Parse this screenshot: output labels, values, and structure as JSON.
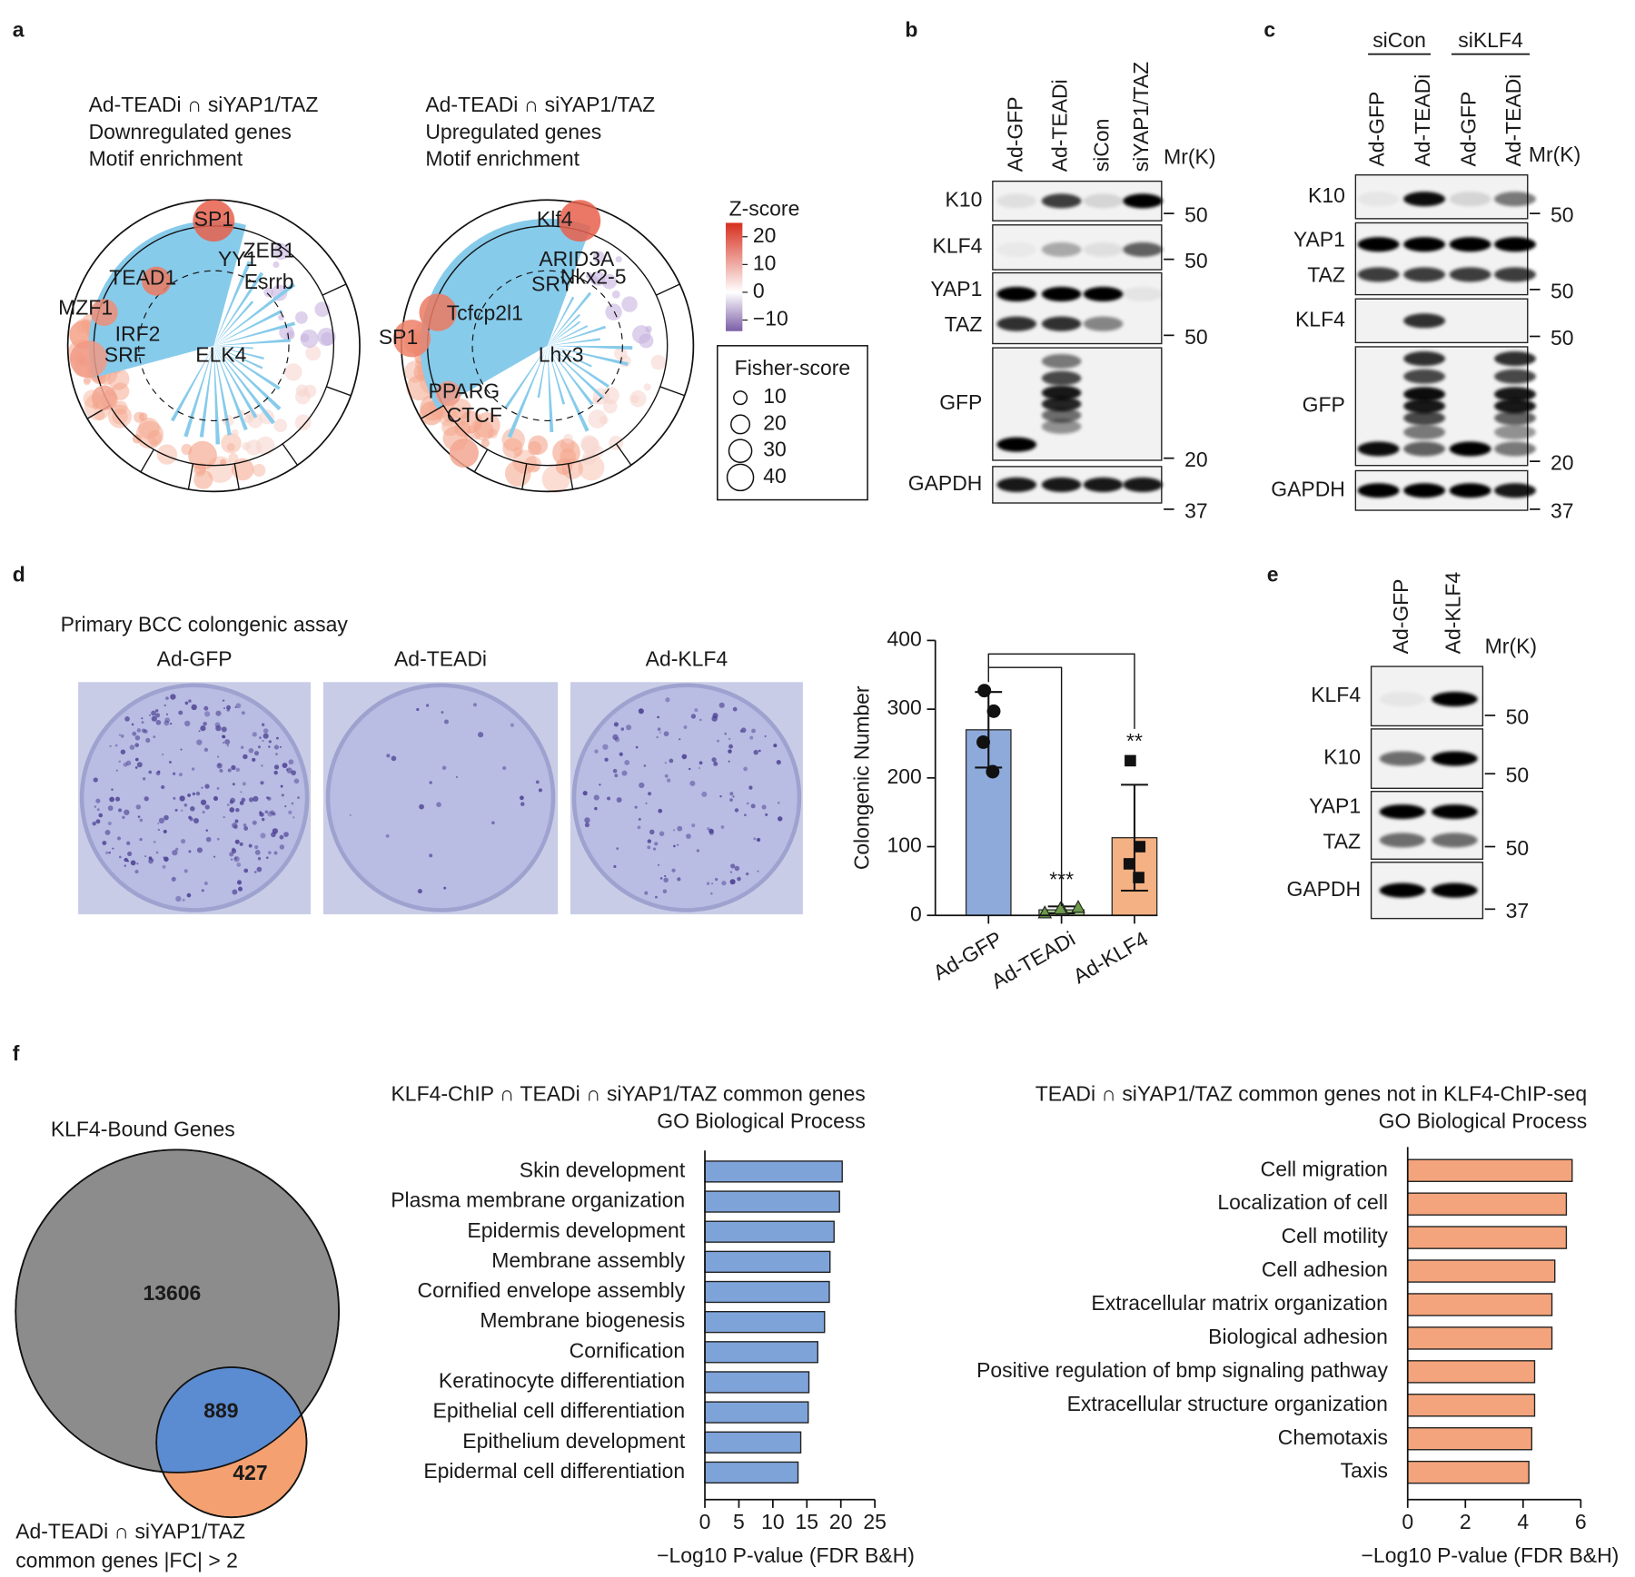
{
  "panel_labels": [
    "a",
    "b",
    "c",
    "d",
    "e",
    "f"
  ],
  "panel_a": {
    "plots": [
      {
        "title": [
          "Ad-TEADi ∩ siYAP1/TAZ",
          "Downregulated genes",
          "Motif enrichment"
        ],
        "labels": [
          "SP1",
          "TEAD1",
          "MZF1",
          "YY1",
          "ZEB1",
          "Esrrb",
          "IRF2",
          "SRF",
          "ELK4"
        ]
      },
      {
        "title": [
          "Ad-TEADi ∩ siYAP1/TAZ",
          "Upregulated genes",
          "Motif enrichment"
        ],
        "labels": [
          "Klf4",
          "ARID3A",
          "Nkx2-5",
          "SRY",
          "Tcfcp2l1",
          "SP1",
          "Lhx3",
          "PPARG",
          "CTCF"
        ]
      }
    ],
    "zscore_legend": {
      "title": "Z-score",
      "lim": [
        -14,
        25
      ],
      "ticks": [
        20,
        10,
        0,
        {
          "value": -10,
          "label": "−10"
        }
      ]
    },
    "fisher_legend": {
      "title": "Fisher-score",
      "sizes": [
        10,
        20,
        30,
        40
      ]
    }
  },
  "blots": [
    {
      "lanes": [
        "Ad-GFP",
        "Ad-TEADi",
        "siCon",
        "siYAP1/TAZ"
      ],
      "mw_title": "Mr(K)",
      "rows": [
        {
          "labels": [
            "K10"
          ],
          "markers": [
            "50"
          ]
        },
        {
          "labels": [
            "KLF4"
          ],
          "markers": [
            "50"
          ]
        },
        {
          "labels": [
            "YAP1",
            "TAZ"
          ],
          "markers": [
            "50"
          ]
        },
        {
          "labels": [
            "GFP"
          ],
          "markers": [
            "20"
          ]
        },
        {
          "labels": [
            "GAPDH"
          ],
          "markers": [
            "37"
          ]
        }
      ]
    },
    {
      "groups": [
        "siCon",
        "siKLF4"
      ],
      "lanes": [
        "Ad-GFP",
        "Ad-TEADi",
        "Ad-GFP",
        "Ad-TEADi"
      ],
      "mw_title": "Mr(K)",
      "rows": [
        {
          "labels": [
            "K10"
          ],
          "markers": [
            "50"
          ]
        },
        {
          "labels": [
            "YAP1",
            "TAZ"
          ],
          "markers": [
            "50"
          ]
        },
        {
          "labels": [
            "KLF4"
          ],
          "markers": [
            "50"
          ]
        },
        {
          "labels": [
            "GFP"
          ],
          "markers": [
            "20"
          ]
        },
        {
          "labels": [
            "GAPDH"
          ],
          "markers": [
            "37"
          ]
        }
      ]
    },
    {
      "lanes": [
        "Ad-GFP",
        "Ad-KLF4"
      ],
      "mw_title": "Mr(K)",
      "rows": [
        {
          "labels": [
            "KLF4"
          ],
          "markers": [
            "50"
          ]
        },
        {
          "labels": [
            "K10"
          ],
          "markers": [
            "50"
          ]
        },
        {
          "labels": [
            "YAP1",
            "TAZ"
          ],
          "markers": [
            "50"
          ]
        },
        {
          "labels": [
            "GAPDH"
          ],
          "markers": [
            "37"
          ]
        }
      ]
    }
  ],
  "panel_d_images": {
    "title": "Primary BCC colongenic assay",
    "labels": [
      "Ad-GFP",
      "Ad-TEADi",
      "Ad-KLF4"
    ]
  },
  "venn": {
    "big_label": "KLF4-Bound Genes",
    "small_label": [
      "Ad-TEADi ∩ siYAP1/TAZ",
      "common genes |FC| > 2"
    ],
    "counts": [
      "13606",
      "889",
      "427"
    ]
  },
  "chart_data": [
    {
      "type": "bar",
      "ylabel": "Colongenic Number",
      "categories": [
        "Ad-GFP",
        "Ad-TEADi",
        "Ad-KLF4"
      ],
      "values": [
        270,
        8,
        113
      ],
      "errors": [
        55,
        5,
        77
      ],
      "points": [
        [
          327,
          297,
          252,
          209
        ],
        [
          4,
          8,
          10,
          12
        ],
        [
          225,
          100,
          75,
          55
        ]
      ],
      "colors": [
        "#8eaadb",
        "#a9d18e",
        "#f4b183"
      ],
      "annotations": [
        "***",
        "**"
      ],
      "ylim": [
        0,
        400
      ],
      "yticks": [
        0,
        100,
        200,
        300,
        400
      ]
    },
    {
      "type": "hbar",
      "title": [
        "KLF4-ChIP ∩ TEADi ∩ siYAP1/TAZ common genes",
        "GO Biological Process"
      ],
      "categories": [
        "Skin development",
        "Plasma membrane organization",
        "Epidermis development",
        "Membrane assembly",
        "Cornified envelope assembly",
        "Membrane biogenesis",
        "Cornification",
        "Keratinocyte differentiation",
        "Epithelial cell differentiation",
        "Epithelium development",
        "Epidermal cell differentiation"
      ],
      "values": [
        20.2,
        19.8,
        19.0,
        18.4,
        18.3,
        17.6,
        16.6,
        15.3,
        15.2,
        14.1,
        13.7
      ],
      "color": "#7ea3d9",
      "xlim": [
        0,
        25
      ],
      "xticks": [
        0,
        5,
        10,
        15,
        20,
        25
      ],
      "xlabel": "−Log10 P-value (FDR B&H)"
    },
    {
      "type": "hbar",
      "title": [
        "TEADi ∩ siYAP1/TAZ common genes not in KLF4-ChIP-seq",
        "GO Biological Process"
      ],
      "categories": [
        "Cell migration",
        "Localization of cell",
        "Cell motility",
        "Cell adhesion",
        "Extracellular matrix organization",
        "Biological adhesion",
        "Positive regulation of bmp signaling pathway",
        "Extracellular structure organization",
        "Chemotaxis",
        "Taxis"
      ],
      "values": [
        5.7,
        5.5,
        5.5,
        5.1,
        5.0,
        5.0,
        4.4,
        4.4,
        4.3,
        4.2
      ],
      "color": "#f4a47c",
      "xlim": [
        0,
        6
      ],
      "xticks": [
        0,
        2,
        4,
        6
      ],
      "xlabel": "−Log10 P-value (FDR B&H)"
    }
  ]
}
